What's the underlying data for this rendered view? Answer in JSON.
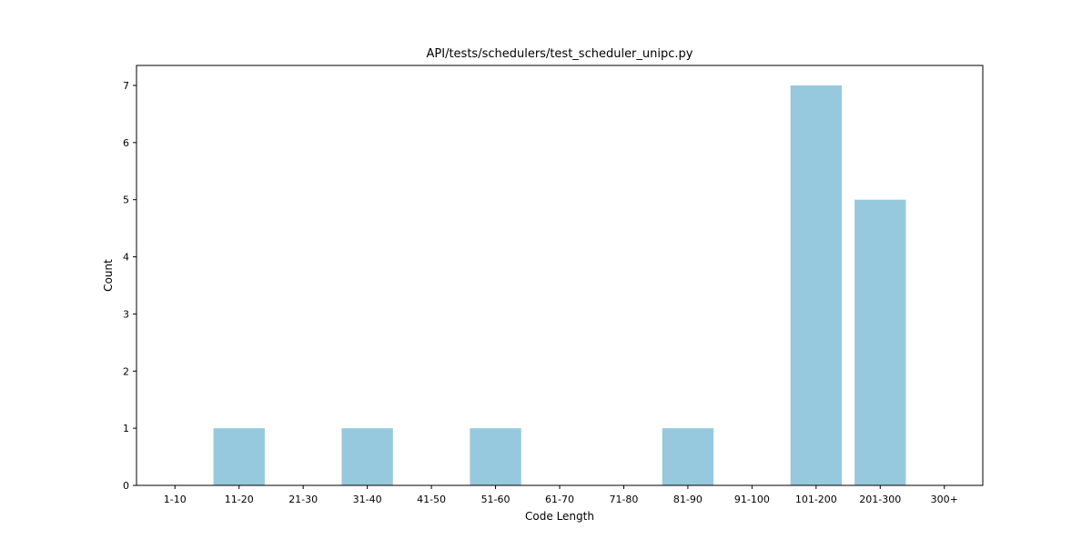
{
  "chart_data": {
    "type": "bar",
    "title": "API/tests/schedulers/test_scheduler_unipc.py",
    "xlabel": "Code Length",
    "ylabel": "Count",
    "categories": [
      "1-10",
      "11-20",
      "21-30",
      "31-40",
      "41-50",
      "51-60",
      "61-70",
      "71-80",
      "81-90",
      "91-100",
      "101-200",
      "201-300",
      "300+"
    ],
    "values": [
      0,
      1,
      0,
      1,
      0,
      1,
      0,
      0,
      1,
      0,
      7,
      5,
      0
    ],
    "ylim": [
      0,
      7.35
    ],
    "yticks": [
      0,
      1,
      2,
      3,
      4,
      5,
      6,
      7
    ],
    "grid": false,
    "legend": "none",
    "bar_color": "#96c9dd",
    "axis_color": "#000000"
  }
}
